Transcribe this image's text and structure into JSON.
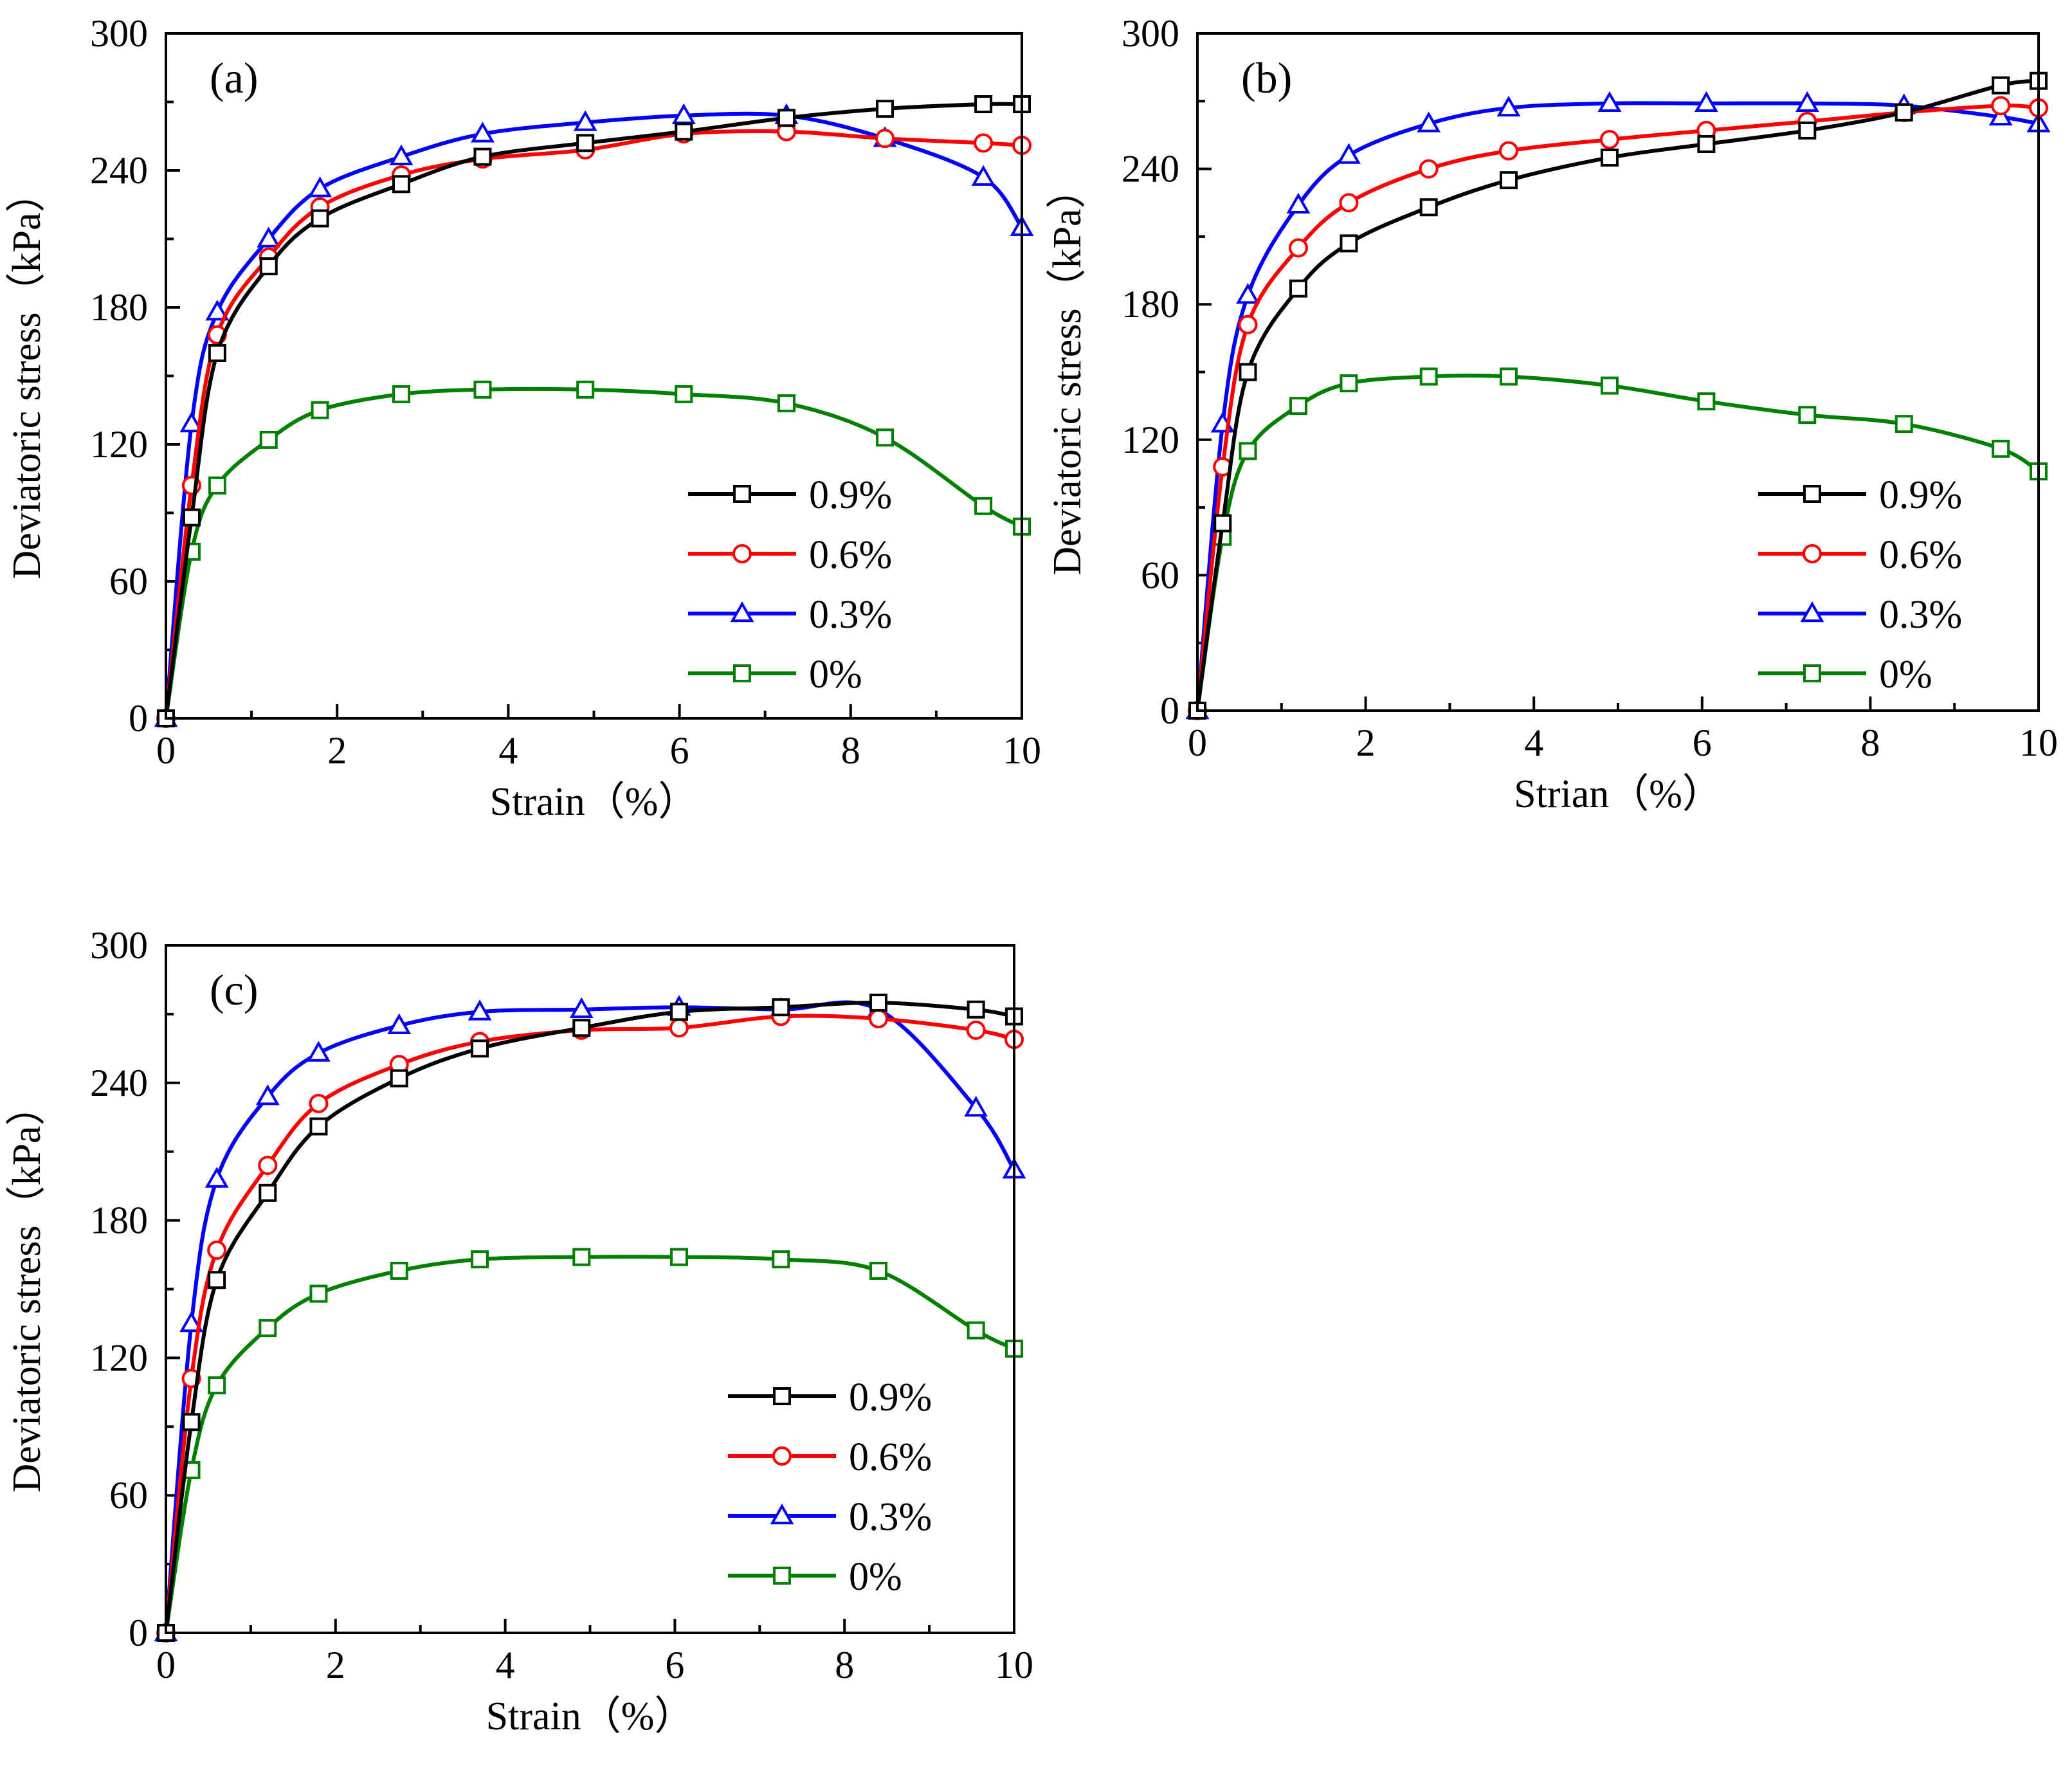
{
  "chart_data": [
    {
      "id": "a",
      "type": "line",
      "panel_label": "(a)",
      "xlabel": "Strain（%）",
      "ylabel": "Deviatoric stress（kPa）",
      "xlim": [
        0,
        10
      ],
      "ylim": [
        0,
        300
      ],
      "xticks": [
        0,
        2,
        4,
        6,
        8,
        10
      ],
      "yticks": [
        0,
        60,
        120,
        180,
        240,
        300
      ],
      "legend_position": "lower-right",
      "series": [
        {
          "name": "0.9%",
          "color": "#000000",
          "marker": "square",
          "x": [
            0,
            0.3,
            0.6,
            1.2,
            1.8,
            2.75,
            3.7,
            4.9,
            6.05,
            7.25,
            8.4,
            9.55,
            10
          ],
          "y": [
            0,
            88,
            160,
            198,
            219,
            234,
            246,
            252,
            257,
            263,
            267,
            269,
            269
          ]
        },
        {
          "name": "0.6%",
          "color": "#ff0000",
          "marker": "circle",
          "x": [
            0,
            0.3,
            0.6,
            1.2,
            1.8,
            2.75,
            3.7,
            4.9,
            6.05,
            7.25,
            8.4,
            9.55,
            10
          ],
          "y": [
            0,
            102,
            168,
            202,
            224,
            238,
            245,
            249,
            256,
            257,
            254,
            252,
            251
          ]
        },
        {
          "name": "0.3%",
          "color": "#0000ff",
          "marker": "triangle",
          "x": [
            0,
            0.3,
            0.6,
            1.2,
            1.8,
            2.75,
            3.7,
            4.9,
            6.05,
            7.25,
            8.4,
            9.55,
            10
          ],
          "y": [
            0,
            129,
            178,
            210,
            232,
            246,
            256,
            261,
            264,
            264,
            254,
            237,
            215
          ]
        },
        {
          "name": "0%",
          "color": "#008000",
          "marker": "square",
          "x": [
            0,
            0.3,
            0.6,
            1.2,
            1.8,
            2.75,
            3.7,
            4.9,
            6.05,
            7.25,
            8.4,
            9.55,
            10
          ],
          "y": [
            0,
            73,
            102,
            122,
            135,
            142,
            144,
            144,
            142,
            138,
            123,
            93,
            84
          ]
        }
      ]
    },
    {
      "id": "b",
      "type": "line",
      "panel_label": "(b)",
      "xlabel": "Strian（%）",
      "ylabel": "Deviatoric stress（kPa）",
      "xlim": [
        0,
        10
      ],
      "ylim": [
        0,
        300
      ],
      "xticks": [
        0,
        2,
        4,
        6,
        8,
        10
      ],
      "yticks": [
        0,
        60,
        120,
        180,
        240,
        300
      ],
      "legend_position": "lower-right",
      "series": [
        {
          "name": "0.9%",
          "color": "#000000",
          "marker": "square",
          "x": [
            0,
            0.3,
            0.6,
            1.2,
            1.8,
            2.75,
            3.7,
            4.9,
            6.05,
            7.25,
            8.4,
            9.55,
            10
          ],
          "y": [
            0,
            83,
            150,
            187,
            207,
            223,
            235,
            245,
            251,
            257,
            265,
            277,
            279
          ]
        },
        {
          "name": "0.6%",
          "color": "#ff0000",
          "marker": "circle",
          "x": [
            0,
            0.3,
            0.6,
            1.2,
            1.8,
            2.75,
            3.7,
            4.9,
            6.05,
            7.25,
            8.4,
            9.55,
            10
          ],
          "y": [
            0,
            108,
            171,
            205,
            225,
            240,
            248,
            253,
            257,
            261,
            265,
            268,
            267
          ]
        },
        {
          "name": "0.3%",
          "color": "#0000ff",
          "marker": "triangle",
          "x": [
            0,
            0.3,
            0.6,
            1.2,
            1.8,
            2.75,
            3.7,
            4.9,
            6.05,
            7.25,
            8.4,
            9.55,
            10
          ],
          "y": [
            0,
            127,
            184,
            224,
            246,
            260,
            267,
            269,
            269,
            269,
            268,
            263,
            260
          ]
        },
        {
          "name": "0%",
          "color": "#008000",
          "marker": "square",
          "x": [
            0,
            0.3,
            0.6,
            1.2,
            1.8,
            2.75,
            3.7,
            4.9,
            6.05,
            7.25,
            8.4,
            9.55,
            10
          ],
          "y": [
            0,
            77,
            115,
            135,
            145,
            148,
            148,
            144,
            137,
            131,
            127,
            116,
            106
          ]
        }
      ]
    },
    {
      "id": "c",
      "type": "line",
      "panel_label": "(c)",
      "xlabel": "Strain（%）",
      "ylabel": "Deviatoric stress（kPa）",
      "xlim": [
        0,
        10
      ],
      "ylim": [
        0,
        300
      ],
      "xticks": [
        0,
        2,
        4,
        6,
        8,
        10
      ],
      "yticks": [
        0,
        60,
        120,
        180,
        240,
        300
      ],
      "legend_position": "lower-right",
      "series": [
        {
          "name": "0.9%",
          "color": "#000000",
          "marker": "square",
          "x": [
            0,
            0.3,
            0.6,
            1.2,
            1.8,
            2.75,
            3.7,
            4.9,
            6.05,
            7.25,
            8.4,
            9.55,
            10
          ],
          "y": [
            0,
            92,
            154,
            192,
            221,
            242,
            255,
            264,
            271,
            273,
            275,
            272,
            269
          ]
        },
        {
          "name": "0.6%",
          "color": "#ff0000",
          "marker": "circle",
          "x": [
            0,
            0.3,
            0.6,
            1.2,
            1.8,
            2.75,
            3.7,
            4.9,
            6.05,
            7.25,
            8.4,
            9.55,
            10
          ],
          "y": [
            0,
            111,
            167,
            204,
            231,
            248,
            258,
            263,
            264,
            269,
            268,
            263,
            259
          ]
        },
        {
          "name": "0.3%",
          "color": "#0000ff",
          "marker": "triangle",
          "x": [
            0,
            0.3,
            0.6,
            1.2,
            1.8,
            2.75,
            3.7,
            4.9,
            6.05,
            7.25,
            8.4,
            9.55,
            10
          ],
          "y": [
            0,
            135,
            198,
            234,
            253,
            265,
            271,
            272,
            273,
            272,
            272,
            229,
            202
          ]
        },
        {
          "name": "0%",
          "color": "#008000",
          "marker": "square",
          "x": [
            0,
            0.3,
            0.6,
            1.2,
            1.8,
            2.75,
            3.7,
            4.9,
            6.05,
            7.25,
            8.4,
            9.55,
            10
          ],
          "y": [
            0,
            71,
            108,
            133,
            148,
            158,
            163,
            164,
            164,
            163,
            158,
            132,
            124
          ]
        }
      ]
    }
  ]
}
